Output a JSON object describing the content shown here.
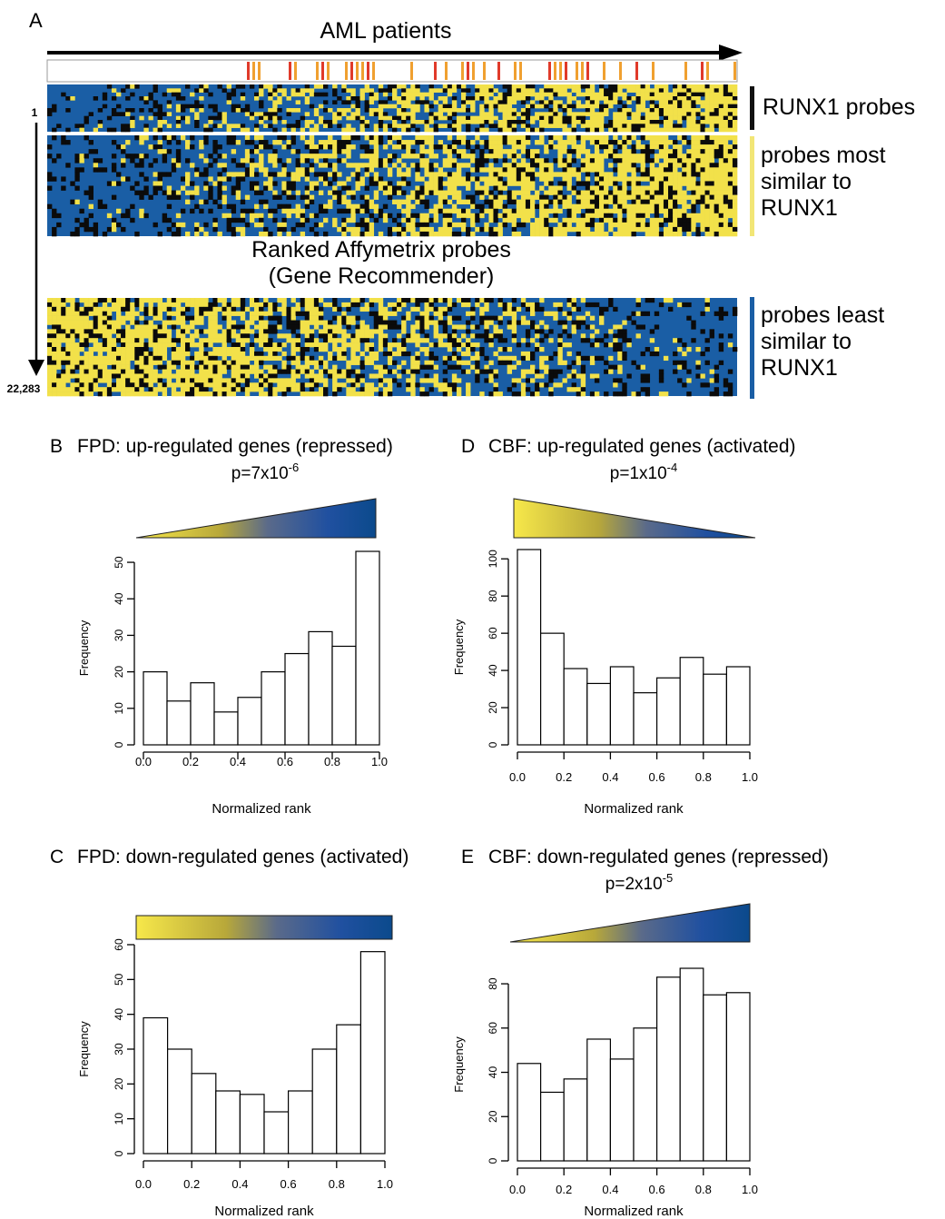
{
  "panel_a": {
    "letter": "A",
    "top_arrow_label": "AML patients",
    "rank_start": "1",
    "rank_end": "22,283",
    "middle_title_line1": "Ranked Affymetrix probes",
    "middle_title_line2": "(Gene Recommender)",
    "group_labels": {
      "runx1": "RUNX1 probes",
      "most_similar": [
        "probes most",
        "similar to",
        "RUNX1"
      ],
      "least_similar": [
        "probes least",
        "similar to",
        "RUNX1"
      ]
    },
    "colors": {
      "high": "#f2e14a",
      "mid": "#0b0b0b",
      "low": "#1a5ea5",
      "marker_orange": "#f0a030",
      "marker_red": "#e03a2a",
      "bar_runx1": "#111111",
      "bar_most": "#f2e676",
      "bar_least": "#1a5ea5"
    }
  },
  "chart_data": [
    {
      "panel": "B",
      "type": "bar",
      "title_letter": "B",
      "title": "FPD: up-regulated genes (repressed)",
      "pvalue_base": "p=7x10",
      "pvalue_exp": "-6",
      "gradient": "triangle-up",
      "xlabel": "Normalized rank",
      "ylabel": "Frequency",
      "xlim": [
        0,
        1
      ],
      "ylim": [
        0,
        53
      ],
      "x_ticks": [
        "0.0",
        "0.2",
        "0.4",
        "0.6",
        "0.8",
        "1.0"
      ],
      "y_ticks": [
        "0",
        "10",
        "20",
        "30",
        "40",
        "50"
      ],
      "y_tick_values": [
        0,
        10,
        20,
        30,
        40,
        50
      ],
      "bin_edges": [
        0,
        0.1,
        0.2,
        0.3,
        0.4,
        0.5,
        0.6,
        0.7,
        0.8,
        0.9,
        1.0
      ],
      "values": [
        20,
        12,
        17,
        9,
        13,
        20,
        25,
        31,
        27,
        53
      ]
    },
    {
      "panel": "C",
      "type": "bar",
      "title_letter": "C",
      "title": "FPD: down-regulated genes (activated)",
      "pvalue_base": "",
      "pvalue_exp": "",
      "gradient": "bar",
      "xlabel": "Normalized rank",
      "ylabel": "Frequency",
      "xlim": [
        0,
        1
      ],
      "ylim": [
        0,
        60
      ],
      "x_ticks": [
        "0.0",
        "0.2",
        "0.4",
        "0.6",
        "0.8",
        "1.0"
      ],
      "y_ticks": [
        "0",
        "10",
        "20",
        "30",
        "40",
        "50",
        "60"
      ],
      "y_tick_values": [
        0,
        10,
        20,
        30,
        40,
        50,
        60
      ],
      "bin_edges": [
        0,
        0.1,
        0.2,
        0.3,
        0.4,
        0.5,
        0.6,
        0.7,
        0.8,
        0.9,
        1.0
      ],
      "values": [
        39,
        30,
        23,
        18,
        17,
        12,
        18,
        30,
        37,
        58
      ]
    },
    {
      "panel": "D",
      "type": "bar",
      "title_letter": "D",
      "title": "CBF: up-regulated genes (activated)",
      "pvalue_base": "p=1x10",
      "pvalue_exp": "-4",
      "gradient": "triangle-down",
      "xlabel": "Normalized rank",
      "ylabel": "Frequency",
      "xlim": [
        0,
        1
      ],
      "ylim": [
        0,
        105
      ],
      "x_ticks": [
        "0.0",
        "0.2",
        "0.4",
        "0.6",
        "0.8",
        "1.0"
      ],
      "y_ticks": [
        "0",
        "20",
        "40",
        "60",
        "80",
        "100"
      ],
      "y_tick_values": [
        0,
        20,
        40,
        60,
        80,
        100
      ],
      "bin_edges": [
        0,
        0.1,
        0.2,
        0.3,
        0.4,
        0.5,
        0.6,
        0.7,
        0.8,
        0.9,
        1.0
      ],
      "values": [
        105,
        60,
        41,
        33,
        42,
        28,
        36,
        47,
        38,
        42
      ]
    },
    {
      "panel": "E",
      "type": "bar",
      "title_letter": "E",
      "title": "CBF: down-regulated genes (repressed)",
      "pvalue_base": "p=2x10",
      "pvalue_exp": "-5",
      "gradient": "triangle-up",
      "xlabel": "Normalized rank",
      "ylabel": "Frequency",
      "xlim": [
        0,
        1
      ],
      "ylim": [
        0,
        87
      ],
      "x_ticks": [
        "0.0",
        "0.2",
        "0.4",
        "0.6",
        "0.8",
        "1.0"
      ],
      "y_ticks": [
        "0",
        "20",
        "40",
        "60",
        "80"
      ],
      "y_tick_values": [
        0,
        20,
        40,
        60,
        80
      ],
      "bin_edges": [
        0,
        0.1,
        0.2,
        0.3,
        0.4,
        0.5,
        0.6,
        0.7,
        0.8,
        0.9,
        1.0
      ],
      "values": [
        44,
        31,
        37,
        55,
        46,
        60,
        83,
        87,
        75,
        76
      ]
    }
  ]
}
